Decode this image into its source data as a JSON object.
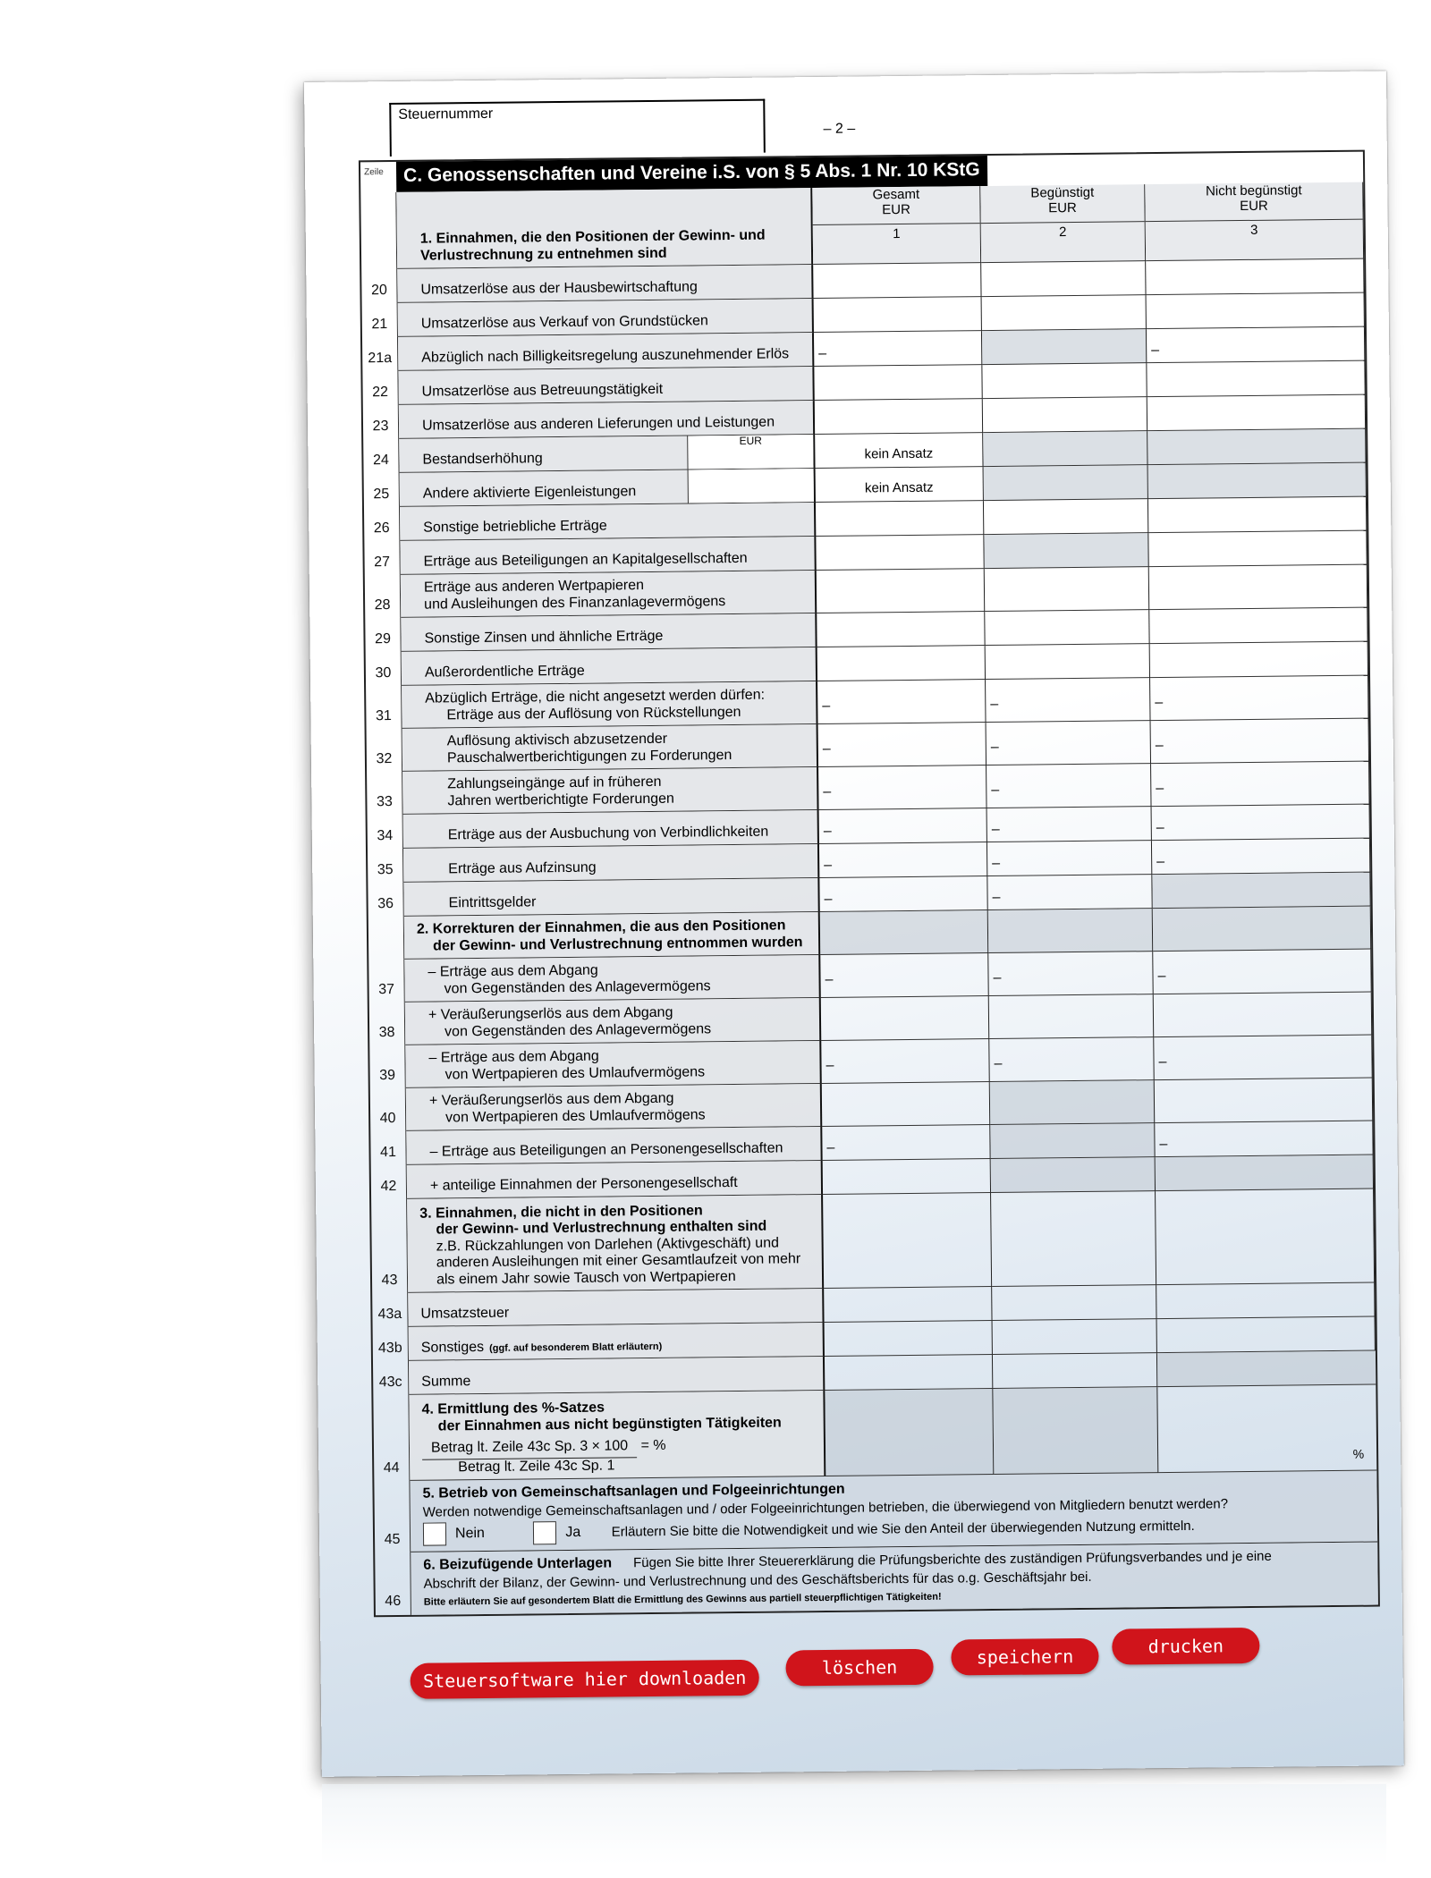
{
  "header": {
    "steuernummer_label": "Steuernummer",
    "page_number": "– 2 –",
    "zeile_label": "Zeile",
    "title": "C. Genossenschaften und Vereine i.S. von § 5 Abs. 1 Nr. 10 KStG"
  },
  "section1": {
    "heading": "1. Einnahmen, die den Positionen der Gewinn- und Verlustrechnung zu entnehmen sind"
  },
  "columns": [
    {
      "label": "Gesamt",
      "unit": "EUR",
      "number": "1"
    },
    {
      "label": "Begünstigt",
      "unit": "EUR",
      "number": "2"
    },
    {
      "label": "Nicht begünstigt",
      "unit": "EUR",
      "number": "3"
    }
  ],
  "rows": [
    {
      "zeile": "20",
      "lines": [
        "Umsatzerlöse aus der Hausbewirtschaftung"
      ],
      "cells": [
        "",
        "",
        ""
      ],
      "shaded": [
        false,
        false,
        false
      ]
    },
    {
      "zeile": "21",
      "lines": [
        "Umsatzerlöse aus Verkauf von Grundstücken"
      ],
      "cells": [
        "",
        "",
        ""
      ],
      "shaded": [
        false,
        false,
        false
      ]
    },
    {
      "zeile": "21a",
      "lines": [
        "Abzüglich nach Billigkeitsregelung auszunehmender Erlös"
      ],
      "cells": [
        "–",
        "",
        "–"
      ],
      "shaded": [
        false,
        true,
        false
      ]
    },
    {
      "zeile": "22",
      "lines": [
        "Umsatzerlöse aus Betreuungstätigkeit"
      ],
      "cells": [
        "",
        "",
        ""
      ],
      "shaded": [
        false,
        false,
        false
      ]
    },
    {
      "zeile": "23",
      "lines": [
        "Umsatzerlöse aus anderen Lieferungen und Leistungen"
      ],
      "cells": [
        "",
        "",
        ""
      ],
      "shaded": [
        false,
        false,
        false
      ]
    },
    {
      "zeile": "24",
      "lines": [
        "Bestandserhöhung"
      ],
      "sub_unit": "EUR",
      "cells": [
        "kein Ansatz",
        "",
        ""
      ],
      "shaded": [
        false,
        true,
        true
      ]
    },
    {
      "zeile": "25",
      "lines": [
        "Andere aktivierte Eigenleistungen"
      ],
      "sub_unit": "",
      "cells": [
        "kein Ansatz",
        "",
        ""
      ],
      "shaded": [
        false,
        true,
        true
      ]
    },
    {
      "zeile": "26",
      "lines": [
        "Sonstige betriebliche Erträge"
      ],
      "cells": [
        "",
        "",
        ""
      ],
      "shaded": [
        false,
        false,
        false
      ]
    },
    {
      "zeile": "27",
      "lines": [
        "Erträge aus Beteiligungen an Kapitalgesellschaften"
      ],
      "cells": [
        "",
        "",
        ""
      ],
      "shaded": [
        false,
        true,
        false
      ]
    },
    {
      "zeile": "28",
      "lines": [
        "Erträge aus anderen Wertpapieren",
        "und Ausleihungen des Finanzanlagevermögens"
      ],
      "cells": [
        "",
        "",
        ""
      ],
      "shaded": [
        false,
        false,
        false
      ]
    },
    {
      "zeile": "29",
      "lines": [
        "Sonstige Zinsen und ähnliche Erträge"
      ],
      "cells": [
        "",
        "",
        ""
      ],
      "shaded": [
        false,
        false,
        false
      ]
    },
    {
      "zeile": "30",
      "lines": [
        "Außerordentliche Erträge"
      ],
      "cells": [
        "",
        "",
        ""
      ],
      "shaded": [
        false,
        false,
        false
      ]
    },
    {
      "zeile": "31",
      "intro": "Abzüglich Erträge, die nicht angesetzt werden dürfen:",
      "indent": true,
      "lines": [
        "Erträge aus der Auflösung von Rückstellungen"
      ],
      "cells": [
        "–",
        "–",
        "–"
      ],
      "shaded": [
        false,
        false,
        false
      ]
    },
    {
      "zeile": "32",
      "indent": true,
      "lines": [
        "Auflösung aktivisch abzusetzender",
        "Pauschalwertberichtigungen zu Forderungen"
      ],
      "cells": [
        "–",
        "–",
        "–"
      ],
      "shaded": [
        false,
        false,
        false
      ]
    },
    {
      "zeile": "33",
      "indent": true,
      "lines": [
        "Zahlungseingänge auf in früheren",
        "Jahren wertberichtigte Forderungen"
      ],
      "cells": [
        "–",
        "–",
        "–"
      ],
      "shaded": [
        false,
        false,
        false
      ]
    },
    {
      "zeile": "34",
      "indent": true,
      "lines": [
        "Erträge aus der Ausbuchung von Verbindlichkeiten"
      ],
      "cells": [
        "–",
        "–",
        "–"
      ],
      "shaded": [
        false,
        false,
        false
      ]
    },
    {
      "zeile": "35",
      "indent": true,
      "lines": [
        "Erträge aus Aufzinsung"
      ],
      "cells": [
        "–",
        "–",
        "–"
      ],
      "shaded": [
        false,
        false,
        false
      ]
    },
    {
      "zeile": "36",
      "indent": true,
      "lines": [
        "Eintrittsgelder"
      ],
      "cells": [
        "–",
        "–",
        ""
      ],
      "shaded": [
        false,
        false,
        true
      ]
    },
    {
      "zeile": "",
      "bold": true,
      "lines": [
        "2. Korrekturen der Einnahmen, die aus den Positionen",
        "der Gewinn- und Verlustrechnung entnommen wurden"
      ],
      "cells": [
        "",
        "",
        ""
      ],
      "shaded": [
        true,
        true,
        true
      ]
    },
    {
      "zeile": "37",
      "lines": [
        "– Erträge aus dem Abgang",
        "von Gegenständen des Anlagevermögens"
      ],
      "cells": [
        "–",
        "–",
        "–"
      ],
      "shaded": [
        false,
        false,
        false
      ]
    },
    {
      "zeile": "38",
      "lines": [
        "+ Veräußerungserlös aus dem Abgang",
        "von Gegenständen des Anlagevermögens"
      ],
      "cells": [
        "",
        "",
        ""
      ],
      "shaded": [
        false,
        false,
        false
      ]
    },
    {
      "zeile": "39",
      "lines": [
        "– Erträge aus dem Abgang",
        "von Wertpapieren des Umlaufvermögens"
      ],
      "cells": [
        "–",
        "–",
        "–"
      ],
      "shaded": [
        false,
        false,
        false
      ]
    },
    {
      "zeile": "40",
      "lines": [
        "+ Veräußerungserlös aus dem Abgang",
        "von Wertpapieren des Umlaufvermögens"
      ],
      "cells": [
        "",
        "",
        ""
      ],
      "shaded": [
        false,
        true,
        false
      ]
    },
    {
      "zeile": "41",
      "lines": [
        "– Erträge aus Beteiligungen an Personengesellschaften"
      ],
      "cells": [
        "–",
        "",
        "–"
      ],
      "shaded": [
        false,
        true,
        false
      ]
    },
    {
      "zeile": "42",
      "lines": [
        "+ anteilige Einnahmen der Personengesellschaft"
      ],
      "cells": [
        "",
        "",
        ""
      ],
      "shaded": [
        false,
        true,
        true
      ]
    },
    {
      "zeile": "43",
      "bold_lines": [
        "3. Einnahmen, die nicht in den Positionen",
        "der Gewinn- und Verlustrechnung enthalten sind"
      ],
      "lines": [
        "z.B. Rückzahlungen von Darlehen (Aktivgeschäft) und",
        "anderen Ausleihungen mit einer Gesamtlaufzeit von mehr",
        "als einem Jahr sowie Tausch von Wertpapieren"
      ],
      "cells": [
        "",
        "",
        ""
      ],
      "shaded": [
        false,
        false,
        false
      ]
    },
    {
      "zeile": "43a",
      "lines": [
        "Umsatzsteuer"
      ],
      "cells": [
        "",
        "",
        ""
      ],
      "shaded": [
        false,
        false,
        false
      ]
    },
    {
      "zeile": "43b",
      "lines": [
        "Sonstiges"
      ],
      "note": "(ggf. auf besonderem Blatt erläutern)",
      "cells": [
        "",
        "",
        ""
      ],
      "shaded": [
        false,
        false,
        false
      ]
    },
    {
      "zeile": "43c",
      "lines": [
        "Summe"
      ],
      "cells": [
        "",
        "",
        ""
      ],
      "shaded": [
        false,
        false,
        true
      ]
    }
  ],
  "section4": {
    "zeile": "44",
    "heading": [
      "4. Ermittlung des %-Satzes",
      "der Einnahmen aus nicht begünstigten Tätigkeiten"
    ],
    "numerator": "Betrag lt. Zeile 43c Sp. 3 × 100",
    "denominator": "Betrag lt. Zeile 43c Sp. 1",
    "equals": "= %",
    "percent_sign": "%"
  },
  "section5": {
    "zeile": "45",
    "heading": "5. Betrieb von Gemeinschaftsanlagen und Folgeeinrichtungen",
    "question": "Werden notwendige Gemeinschaftsanlagen und / oder Folgeeinrichtungen betrieben, die überwiegend von Mitgliedern benutzt werden?",
    "no_label": "Nein",
    "yes_label": "Ja",
    "explain": "Erläutern Sie bitte die Notwendigkeit und wie Sie den Anteil der überwiegenden Nutzung ermitteln."
  },
  "section6": {
    "zeile": "46",
    "heading": "6. Beizufügende Unterlagen",
    "text1": "Fügen Sie bitte Ihrer Steuererklärung die Prüfungsberichte des zuständigen Prüfungsverbandes und je eine",
    "text2": "Abschrift der Bilanz, der Gewinn- und Verlustrechnung und des Geschäftsberichts für das o.g. Geschäftsjahr bei.",
    "note": "Bitte erläutern Sie auf gesondertem Blatt die Ermittlung des Gewinns aus partiell steuerpflichtigen Tätigkeiten!"
  },
  "buttons": {
    "download": "Steuersoftware hier downloaden",
    "clear": "löschen",
    "save": "speichern",
    "print": "drucken",
    "color": "#d0141b"
  }
}
